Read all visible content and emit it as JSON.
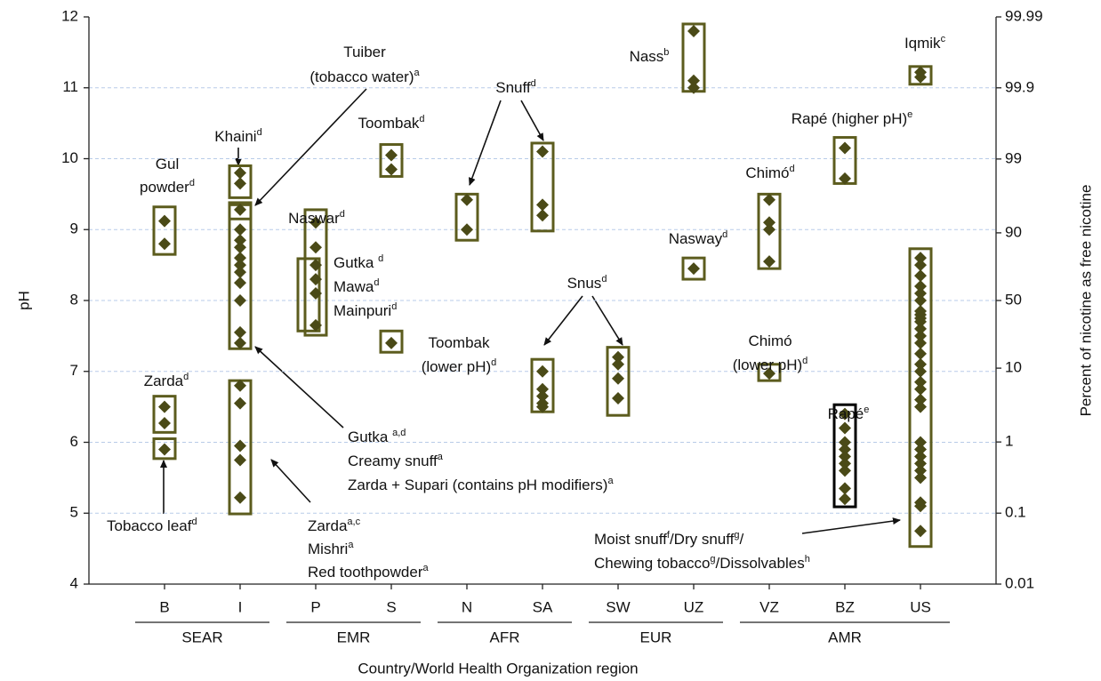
{
  "chart_data": {
    "type": "scatter",
    "ylabel": "pH",
    "y2label": "Percent of nicotine as free nicotine",
    "xlabel": "Country/World Health Organization region",
    "ylim": [
      4,
      12
    ],
    "yticks": [
      4,
      5,
      6,
      7,
      8,
      9,
      10,
      11,
      12
    ],
    "y2lim": [
      0.01,
      99.99
    ],
    "y2scale": "logit",
    "y2ticks": [
      0.01,
      0.1,
      1,
      10,
      50,
      90,
      99,
      99.9,
      99.99
    ],
    "grid": true,
    "marker_color": "#4a4a17",
    "categories": [
      "B",
      "I",
      "P",
      "S",
      "N",
      "SA",
      "SW",
      "UZ",
      "VZ",
      "BZ",
      "US"
    ],
    "regions": [
      {
        "label": "SEAR",
        "count": 2
      },
      {
        "label": "EMR",
        "count": 2
      },
      {
        "label": "AFR",
        "count": 2
      },
      {
        "label": "EUR",
        "count": 2
      },
      {
        "label": "AMR",
        "count": 3
      }
    ],
    "points": [
      [
        9.12,
        8.8,
        6.5,
        6.27,
        5.9
      ],
      [
        9.8,
        9.65,
        9.28,
        9.0,
        8.85,
        8.75,
        8.6,
        8.5,
        8.4,
        8.25,
        8.0,
        7.55,
        7.4,
        6.8,
        6.55,
        5.95,
        5.75,
        5.22
      ],
      [
        9.1,
        8.75,
        8.5,
        8.3,
        8.1,
        7.65
      ],
      [
        10.05,
        9.85,
        7.4
      ],
      [
        9.42,
        9.0
      ],
      [
        10.1,
        9.35,
        9.2,
        7.0,
        6.75,
        6.65,
        6.55,
        6.5
      ],
      [
        7.2,
        7.1,
        6.9,
        6.62
      ],
      [
        11.8,
        11.1,
        11.0,
        8.45
      ],
      [
        9.42,
        9.1,
        9.0,
        8.55,
        6.97
      ],
      [
        10.15,
        9.72,
        6.4,
        6.2,
        6.0,
        5.9,
        5.8,
        5.7,
        5.6,
        5.35,
        5.2
      ],
      [
        11.22,
        11.15,
        8.6,
        8.5,
        8.35,
        8.2,
        8.1,
        8.0,
        7.85,
        7.8,
        7.75,
        7.7,
        7.6,
        7.5,
        7.4,
        7.25,
        7.1,
        7.0,
        6.85,
        6.75,
        6.6,
        6.5,
        6.0,
        5.9,
        5.8,
        5.7,
        5.6,
        5.5,
        5.15,
        5.1,
        4.75
      ]
    ],
    "boxes": [
      [
        {
          "range": [
            8.65,
            9.32
          ],
          "color": "#5c5c1e"
        },
        {
          "range": [
            6.14,
            6.65
          ],
          "color": "#5c5c1e"
        },
        {
          "range": [
            5.77,
            6.05
          ],
          "color": "#5c5c1e"
        }
      ],
      [
        {
          "range": [
            9.45,
            9.9
          ],
          "color": "#5c5c1e"
        },
        {
          "range": [
            9.15,
            9.35
          ],
          "color": "#5c5c1e"
        },
        {
          "range": [
            7.32,
            9.38
          ],
          "color": "#5c5c1e"
        },
        {
          "range": [
            4.99,
            6.87
          ],
          "color": "#5c5c1e"
        }
      ],
      [
        {
          "range": [
            7.51,
            9.28
          ],
          "color": "#5c5c1e"
        },
        {
          "range": [
            7.57,
            8.59
          ],
          "color": "#5c5c1e"
        }
      ],
      [
        {
          "range": [
            9.75,
            10.2
          ],
          "color": "#5c5c1e"
        },
        {
          "range": [
            7.27,
            7.57
          ],
          "color": "#5c5c1e"
        }
      ],
      [
        {
          "range": [
            8.85,
            9.5
          ],
          "color": "#5c5c1e"
        }
      ],
      [
        {
          "range": [
            8.98,
            10.22
          ],
          "color": "#5c5c1e"
        },
        {
          "range": [
            6.43,
            7.17
          ],
          "color": "#5c5c1e"
        }
      ],
      [
        {
          "range": [
            6.38,
            7.34
          ],
          "color": "#5c5c1e"
        }
      ],
      [
        {
          "range": [
            10.95,
            11.9
          ],
          "color": "#5c5c1e"
        },
        {
          "range": [
            8.3,
            8.6
          ],
          "color": "#5c5c1e"
        }
      ],
      [
        {
          "range": [
            8.45,
            9.5
          ],
          "color": "#5c5c1e"
        },
        {
          "range": [
            6.87,
            7.1
          ],
          "color": "#5c5c1e"
        }
      ],
      [
        {
          "range": [
            9.65,
            10.3
          ],
          "color": "#5c5c1e"
        },
        {
          "range": [
            5.09,
            6.53
          ],
          "color": "#000000"
        }
      ],
      [
        {
          "range": [
            11.05,
            11.3
          ],
          "color": "#5c5c1e"
        },
        {
          "range": [
            4.53,
            8.73
          ],
          "color": "#5c5c1e"
        }
      ]
    ],
    "annotations": [
      {
        "lines": [
          [
            {
              "text": "Tuiber"
            }
          ],
          [
            {
              "text": "(tobacco water)",
              "sup": "a"
            }
          ]
        ]
      },
      {
        "lines": [
          [
            {
              "text": "Khaini",
              "sup": "d"
            }
          ]
        ]
      },
      {
        "lines": [
          [
            {
              "text": "Gul"
            }
          ],
          [
            {
              "text": "powder",
              "sup": "d"
            }
          ]
        ]
      },
      {
        "lines": [
          [
            {
              "text": "Toombak",
              "sup": "d"
            }
          ]
        ]
      },
      {
        "lines": [
          [
            {
              "text": "Naswar",
              "sup": "d"
            }
          ]
        ]
      },
      {
        "lines": [
          [
            {
              "text": "Gutka ",
              "sup": "d"
            }
          ],
          [
            {
              "text": "Mawa",
              "sup": "d"
            }
          ],
          [
            {
              "text": "Mainpuri",
              "sup": "d"
            }
          ]
        ]
      },
      {
        "lines": [
          [
            {
              "text": "Snuff",
              "sup": "d"
            }
          ]
        ]
      },
      {
        "lines": [
          [
            {
              "text": "Nass",
              "sup": "b"
            }
          ]
        ]
      },
      {
        "lines": [
          [
            {
              "text": "Iqmik",
              "sup": "c"
            }
          ]
        ]
      },
      {
        "lines": [
          [
            {
              "text": "Rapé (higher pH)",
              "sup": "e"
            }
          ]
        ]
      },
      {
        "lines": [
          [
            {
              "text": "Chimó",
              "sup": "d"
            }
          ]
        ]
      },
      {
        "lines": [
          [
            {
              "text": "Nasway",
              "sup": "d"
            }
          ]
        ]
      },
      {
        "lines": [
          [
            {
              "text": "Snus",
              "sup": "d"
            }
          ]
        ]
      },
      {
        "lines": [
          [
            {
              "text": "Toombak"
            }
          ],
          [
            {
              "text": "(lower pH)",
              "sup": "d"
            }
          ]
        ]
      },
      {
        "lines": [
          [
            {
              "text": "Chimó"
            }
          ],
          [
            {
              "text": "(lower pH)",
              "sup": "d"
            }
          ]
        ]
      },
      {
        "lines": [
          [
            {
              "text": "Zarda",
              "sup": "d"
            }
          ]
        ]
      },
      {
        "lines": [
          [
            {
              "text": "Rapé",
              "sup": "e"
            }
          ]
        ]
      },
      {
        "lines": [
          [
            {
              "text": "Gutka  ",
              "sup": "a,d"
            }
          ],
          [
            {
              "text": "Creamy snuff",
              "sup": "a"
            }
          ],
          [
            {
              "text": "Zarda + Supari (contains pH modifiers)",
              "sup": "a"
            }
          ]
        ]
      },
      {
        "lines": [
          [
            {
              "text": "Tobacco leaf",
              "sup": "d"
            }
          ]
        ]
      },
      {
        "lines": [
          [
            {
              "text": "Zarda",
              "sup": "a,c"
            }
          ],
          [
            {
              "text": "Mishri",
              "sup": "a"
            }
          ],
          [
            {
              "text": "Red toothpowder",
              "sup": "a"
            }
          ]
        ]
      },
      {
        "lines": [
          [
            {
              "text": "Moist snuff",
              "sup": "f"
            },
            {
              "text": "/Dry snuff",
              "sup": "g"
            },
            {
              "text": "/"
            }
          ],
          [
            {
              "text": "Chewing tobacco",
              "sup": "g"
            },
            {
              "text": "/Dissolvables",
              "sup": "h"
            }
          ]
        ]
      }
    ]
  }
}
